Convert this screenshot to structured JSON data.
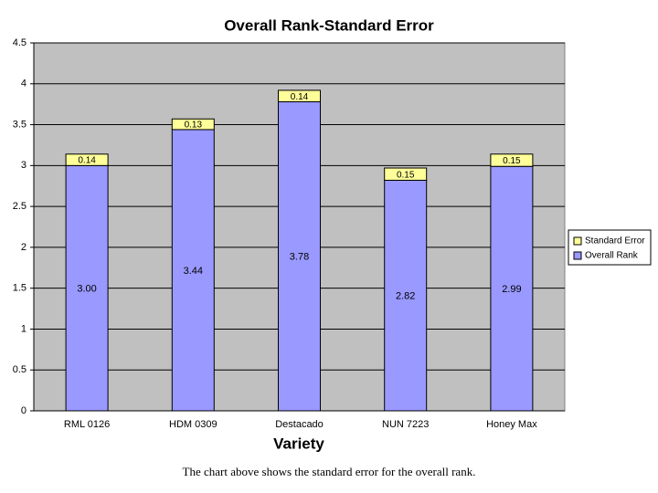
{
  "chart_data": {
    "type": "stacked_bar",
    "title": "Overall Rank-Standard Error",
    "x_label": "Variety",
    "categories": [
      "RML 0126",
      "HDM 0309",
      "Destacado",
      "NUN 7223",
      "Honey Max"
    ],
    "series": [
      {
        "name": "Overall Rank",
        "color": "#9999ff",
        "values": [
          3.0,
          3.44,
          3.78,
          2.82,
          2.99
        ],
        "value_labels": [
          "3.00",
          "3.44",
          "3.78",
          "2.82",
          "2.99"
        ]
      },
      {
        "name": "Standard Error",
        "color": "#ffff99",
        "values": [
          0.14,
          0.13,
          0.14,
          0.15,
          0.15
        ]
      }
    ],
    "ylim": [
      0,
      4.5
    ],
    "yticks": [
      0,
      0.5,
      1,
      1.5,
      2,
      2.5,
      3,
      3.5,
      4,
      4.5
    ],
    "grid": true,
    "legend": "right"
  },
  "caption": "The chart above shows the standard error for the overall rank."
}
